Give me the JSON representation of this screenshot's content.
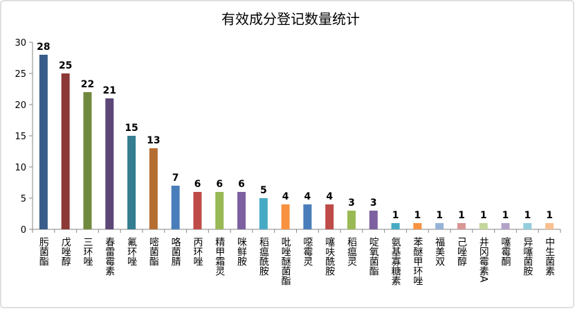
{
  "chart_data": {
    "type": "bar",
    "title": "有效成分登记数量统计",
    "categories": [
      "肟菌酯",
      "戊唑醇",
      "三环唑",
      "春雷霉素",
      "氟环唑",
      "嘧菌酯",
      "咯菌腈",
      "丙环唑",
      "精甲霜灵",
      "咪鲜胺",
      "稻瘟酰胺",
      "吡唑醚菌酯",
      "噁霉灵",
      "噻呋酰胺",
      "稻瘟灵",
      "啶氧菌酯",
      "氨基寡糖素",
      "苯醚甲环唑",
      "福美双",
      "己唑醇",
      "井冈霉素A",
      "噻霉酮",
      "异噻菌胺",
      "中生菌素"
    ],
    "values": [
      28,
      25,
      22,
      21,
      15,
      13,
      7,
      6,
      6,
      6,
      5,
      4,
      4,
      4,
      3,
      3,
      1,
      1,
      1,
      1,
      1,
      1,
      1,
      1
    ],
    "colors": [
      "#385d8a",
      "#8c3836",
      "#71893f",
      "#5c4776",
      "#357d91",
      "#b66d31",
      "#4a7ebb",
      "#be4b48",
      "#98b954",
      "#7d60a0",
      "#46aac5",
      "#f69240",
      "#4a7ebb",
      "#be4b48",
      "#98b954",
      "#7d60a0",
      "#46aac5",
      "#f69240",
      "#95b3d7",
      "#d99694",
      "#c3d69b",
      "#b3a2c7",
      "#93cddd",
      "#fac090"
    ],
    "ylim": [
      0,
      30
    ],
    "yticks": [
      0,
      5,
      10,
      15,
      20,
      25,
      30
    ],
    "grid": false
  }
}
